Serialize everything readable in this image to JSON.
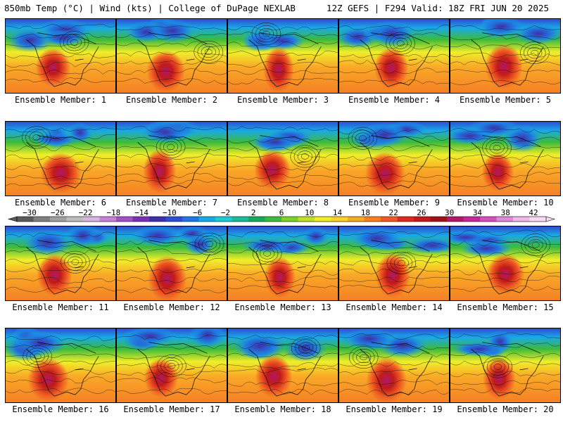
{
  "header": {
    "left": "850mb Temp (°C) | Wind (kts) | College of DuPage NEXLAB",
    "right": "12Z GEFS | F294 Valid: 18Z FRI JUN 20 2025"
  },
  "panels": [
    "Ensemble Member: 1",
    "Ensemble Member: 2",
    "Ensemble Member: 3",
    "Ensemble Member: 4",
    "Ensemble Member: 5",
    "Ensemble Member: 6",
    "Ensemble Member: 7",
    "Ensemble Member: 8",
    "Ensemble Member: 9",
    "Ensemble Member: 10",
    "Ensemble Member: 11",
    "Ensemble Member: 12",
    "Ensemble Member: 13",
    "Ensemble Member: 14",
    "Ensemble Member: 15",
    "Ensemble Member: 16",
    "Ensemble Member: 17",
    "Ensemble Member: 18",
    "Ensemble Member: 19",
    "Ensemble Member: 20"
  ],
  "colorbar": {
    "ticks": [
      "-30",
      "-26",
      "-22",
      "-18",
      "-14",
      "-10",
      "-6",
      "-2",
      "2",
      "6",
      "10",
      "14",
      "18",
      "22",
      "26",
      "30",
      "34",
      "38",
      "42"
    ],
    "colors": [
      "#5a5a5a",
      "#808080",
      "#a0a0a0",
      "#bdbdbd",
      "#d8b4e0",
      "#c77fd8",
      "#a34fc7",
      "#7a2fb8",
      "#3f2fa8",
      "#2a4fd0",
      "#1f78e0",
      "#19a8e8",
      "#20c8d8",
      "#1fb89a",
      "#1aa85a",
      "#3dbb3a",
      "#7cd12e",
      "#bfe02a",
      "#f0ee2a",
      "#fcd02a",
      "#f9a927",
      "#f58025",
      "#ef5a22",
      "#dd2a1e",
      "#c01a1a",
      "#9c1418",
      "#b0186a",
      "#c02a9a",
      "#d050c0",
      "#e288d8",
      "#f0b8ea",
      "#f8daf4"
    ]
  }
}
